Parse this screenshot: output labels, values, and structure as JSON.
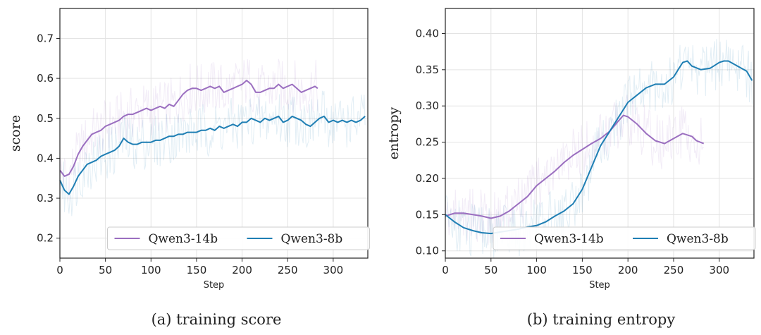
{
  "chart_data": [
    {
      "type": "line",
      "caption": "(a) training score",
      "xlabel": "Step",
      "ylabel": "score",
      "xlim": [
        0,
        338
      ],
      "ylim": [
        0.15,
        0.775
      ],
      "x_ticks": [
        0,
        50,
        100,
        150,
        200,
        250,
        300
      ],
      "y_ticks": [
        0.2,
        0.3,
        0.4,
        0.5,
        0.6,
        0.7
      ],
      "x_tick_labels": [
        "0",
        "50",
        "100",
        "150",
        "200",
        "250",
        "300"
      ],
      "y_tick_labels": [
        "0.2",
        "0.3",
        "0.4",
        "0.5",
        "0.6",
        "0.7"
      ],
      "grid": true,
      "legend_position": "bottom",
      "series": [
        {
          "name": "Qwen3-14b",
          "color": "#9b6fc0",
          "x": [
            0,
            5,
            10,
            15,
            20,
            25,
            30,
            35,
            40,
            45,
            50,
            55,
            60,
            65,
            70,
            75,
            80,
            85,
            90,
            95,
            100,
            105,
            110,
            115,
            120,
            125,
            130,
            135,
            140,
            145,
            150,
            155,
            160,
            165,
            170,
            175,
            180,
            185,
            190,
            195,
            200,
            205,
            210,
            215,
            220,
            225,
            230,
            235,
            240,
            245,
            250,
            255,
            260,
            265,
            270,
            275,
            280,
            283
          ],
          "y": [
            0.37,
            0.355,
            0.36,
            0.38,
            0.41,
            0.43,
            0.445,
            0.46,
            0.465,
            0.47,
            0.48,
            0.485,
            0.49,
            0.495,
            0.505,
            0.51,
            0.51,
            0.515,
            0.52,
            0.525,
            0.52,
            0.525,
            0.53,
            0.525,
            0.535,
            0.53,
            0.545,
            0.56,
            0.57,
            0.575,
            0.575,
            0.57,
            0.575,
            0.58,
            0.575,
            0.58,
            0.565,
            0.57,
            0.575,
            0.58,
            0.585,
            0.595,
            0.585,
            0.565,
            0.565,
            0.57,
            0.575,
            0.575,
            0.585,
            0.575,
            0.58,
            0.585,
            0.575,
            0.565,
            0.57,
            0.575,
            0.58,
            0.575
          ]
        },
        {
          "name": "Qwen3-8b",
          "color": "#1f7fb4",
          "x": [
            0,
            5,
            10,
            15,
            20,
            25,
            30,
            35,
            40,
            45,
            50,
            55,
            60,
            65,
            70,
            75,
            80,
            85,
            90,
            95,
            100,
            105,
            110,
            115,
            120,
            125,
            130,
            135,
            140,
            145,
            150,
            155,
            160,
            165,
            170,
            175,
            180,
            185,
            190,
            195,
            200,
            205,
            210,
            215,
            220,
            225,
            230,
            235,
            240,
            245,
            250,
            255,
            260,
            265,
            270,
            275,
            280,
            285,
            290,
            295,
            300,
            305,
            310,
            315,
            320,
            325,
            330,
            335
          ],
          "y": [
            0.345,
            0.32,
            0.31,
            0.33,
            0.355,
            0.37,
            0.385,
            0.39,
            0.395,
            0.405,
            0.41,
            0.415,
            0.42,
            0.43,
            0.45,
            0.44,
            0.435,
            0.435,
            0.44,
            0.44,
            0.44,
            0.445,
            0.445,
            0.45,
            0.455,
            0.455,
            0.46,
            0.46,
            0.465,
            0.465,
            0.465,
            0.47,
            0.47,
            0.475,
            0.47,
            0.48,
            0.475,
            0.48,
            0.485,
            0.48,
            0.49,
            0.49,
            0.5,
            0.495,
            0.49,
            0.5,
            0.495,
            0.5,
            0.505,
            0.49,
            0.495,
            0.505,
            0.5,
            0.495,
            0.485,
            0.48,
            0.49,
            0.5,
            0.505,
            0.49,
            0.495,
            0.49,
            0.495,
            0.49,
            0.495,
            0.49,
            0.495,
            0.505
          ]
        }
      ]
    },
    {
      "type": "line",
      "caption": "(b) training entropy",
      "xlabel": "Step",
      "ylabel": "entropy",
      "xlim": [
        0,
        338
      ],
      "ylim": [
        0.09,
        0.4345
      ],
      "x_ticks": [
        0,
        50,
        100,
        150,
        200,
        250,
        300
      ],
      "y_ticks": [
        0.1,
        0.15,
        0.2,
        0.25,
        0.3,
        0.35,
        0.4
      ],
      "x_tick_labels": [
        "0",
        "50",
        "100",
        "150",
        "200",
        "250",
        "300"
      ],
      "y_tick_labels": [
        "0.10",
        "0.15",
        "0.20",
        "0.25",
        "0.30",
        "0.35",
        "0.40"
      ],
      "grid": true,
      "legend_position": "bottom",
      "series": [
        {
          "name": "Qwen3-14b",
          "color": "#9b6fc0",
          "x": [
            0,
            10,
            20,
            30,
            40,
            50,
            60,
            70,
            80,
            90,
            100,
            110,
            120,
            130,
            140,
            150,
            160,
            170,
            180,
            190,
            195,
            200,
            210,
            220,
            230,
            240,
            250,
            260,
            270,
            275,
            283
          ],
          "y": [
            0.148,
            0.152,
            0.152,
            0.15,
            0.148,
            0.145,
            0.148,
            0.155,
            0.165,
            0.175,
            0.19,
            0.2,
            0.21,
            0.222,
            0.232,
            0.24,
            0.248,
            0.255,
            0.265,
            0.28,
            0.287,
            0.285,
            0.275,
            0.262,
            0.252,
            0.248,
            0.255,
            0.262,
            0.258,
            0.252,
            0.248
          ]
        },
        {
          "name": "Qwen3-8b",
          "color": "#1f7fb4",
          "x": [
            0,
            10,
            20,
            30,
            40,
            50,
            60,
            70,
            80,
            90,
            100,
            110,
            120,
            130,
            140,
            150,
            160,
            170,
            180,
            190,
            200,
            210,
            220,
            230,
            240,
            250,
            255,
            260,
            265,
            270,
            280,
            290,
            300,
            305,
            310,
            320,
            330,
            336
          ],
          "y": [
            0.15,
            0.14,
            0.132,
            0.128,
            0.125,
            0.124,
            0.126,
            0.128,
            0.13,
            0.133,
            0.135,
            0.14,
            0.148,
            0.155,
            0.165,
            0.185,
            0.215,
            0.245,
            0.265,
            0.285,
            0.305,
            0.315,
            0.325,
            0.33,
            0.33,
            0.34,
            0.35,
            0.36,
            0.362,
            0.355,
            0.35,
            0.352,
            0.36,
            0.362,
            0.362,
            0.355,
            0.348,
            0.335
          ]
        }
      ]
    }
  ]
}
